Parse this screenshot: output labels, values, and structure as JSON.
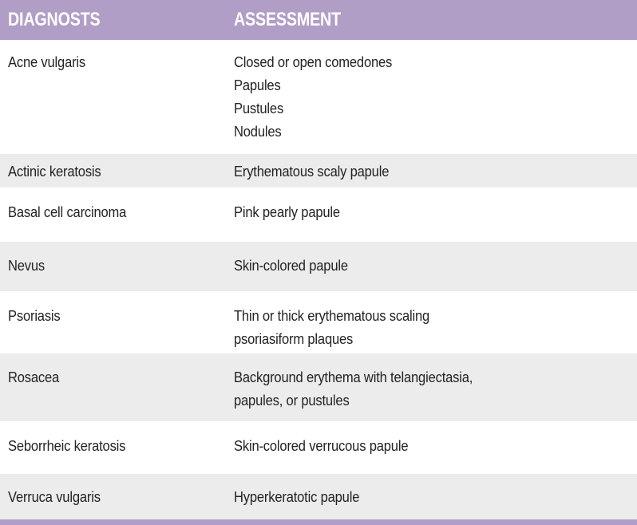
{
  "table": {
    "columns": [
      {
        "label": "DIAGNOSTS"
      },
      {
        "label": "ASSESSMENT"
      }
    ],
    "rows": [
      {
        "diagnosis": "Acne vulgaris",
        "assessment": [
          "Closed or open comedones",
          "Papules",
          "Pustules",
          "Nodules"
        ]
      },
      {
        "diagnosis": "Actinic keratosis",
        "assessment": [
          "Erythematous scaly papule"
        ]
      },
      {
        "diagnosis": "Basal cell carcinoma",
        "assessment": [
          "Pink pearly papule"
        ]
      },
      {
        "diagnosis": "Nevus",
        "assessment": [
          "Skin-colored papule"
        ]
      },
      {
        "diagnosis": "Psoriasis",
        "assessment": [
          "Thin or thick erythematous scaling",
          "psoriasiform plaques"
        ]
      },
      {
        "diagnosis": "Rosacea",
        "assessment": [
          "Background erythema with telangiectasia,",
          "papules, or pustules"
        ]
      },
      {
        "diagnosis": "Seborrheic keratosis",
        "assessment": [
          "Skin-colored verrucous papule"
        ]
      },
      {
        "diagnosis": "Verruca vulgaris",
        "assessment": [
          "Hyperkeratotic papule"
        ]
      }
    ]
  },
  "colors": {
    "header_bg": "#b09ec7",
    "header_text": "#ffffff",
    "row_bg": "#ffffff",
    "row_alt_bg": "#ebeceb",
    "text": "#262223",
    "footer_bar": "#b09ec7"
  }
}
